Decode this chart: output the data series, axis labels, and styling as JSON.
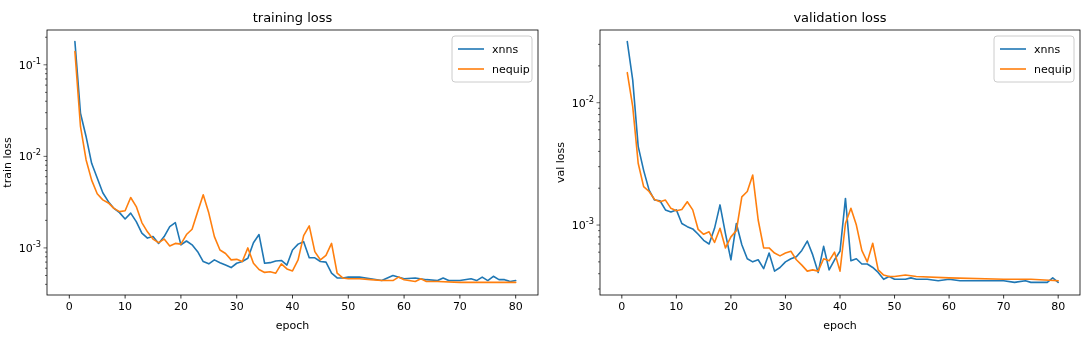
{
  "chart_data": [
    {
      "type": "line",
      "title": "training loss",
      "xlabel": "epoch",
      "ylabel": "train loss",
      "log": "y",
      "legend": "top right",
      "grid": false,
      "xlim": [
        -4,
        84
      ],
      "xticks": [
        0,
        10,
        20,
        30,
        40,
        50,
        60,
        70,
        80
      ],
      "ylim": [
        0.000306,
        0.24
      ],
      "yticks": [
        {
          "value": 0.0004,
          "label": null
        },
        {
          "value": 0.0005,
          "label": null
        },
        {
          "value": 0.0006,
          "label": null
        },
        {
          "value": 0.0007,
          "label": null
        },
        {
          "value": 0.0008,
          "label": null
        },
        {
          "value": 0.0009,
          "label": null
        },
        {
          "value": 0.001,
          "label": "10$^{-3}$"
        },
        {
          "value": 0.002,
          "label": null
        },
        {
          "value": 0.003,
          "label": null
        },
        {
          "value": 0.004,
          "label": null
        },
        {
          "value": 0.005,
          "label": null
        },
        {
          "value": 0.006,
          "label": null
        },
        {
          "value": 0.007,
          "label": null
        },
        {
          "value": 0.008,
          "label": null
        },
        {
          "value": 0.009,
          "label": null
        },
        {
          "value": 0.01,
          "label": "10$^{-2}$"
        },
        {
          "value": 0.02,
          "label": null
        },
        {
          "value": 0.03,
          "label": null
        },
        {
          "value": 0.04,
          "label": null
        },
        {
          "value": 0.05,
          "label": null
        },
        {
          "value": 0.06,
          "label": null
        },
        {
          "value": 0.07,
          "label": null
        },
        {
          "value": 0.08,
          "label": null
        },
        {
          "value": 0.09,
          "label": null
        },
        {
          "value": 0.1,
          "label": "10$^{-1}$"
        },
        {
          "value": 0.2,
          "label": null
        }
      ],
      "series": [
        {
          "name": "xnns",
          "color": "#1f77b4",
          "x": [
            1,
            2,
            3,
            4,
            5,
            6,
            7,
            8,
            9,
            10,
            11,
            12,
            13,
            14,
            15,
            16,
            17,
            18,
            19,
            20,
            21,
            22,
            23,
            24,
            25,
            26,
            27,
            28,
            29,
            30,
            31,
            32,
            33,
            34,
            35,
            36,
            37,
            38,
            39,
            40,
            41,
            42,
            43,
            44,
            45,
            46,
            47,
            48,
            49,
            50,
            52,
            54,
            56,
            58,
            60,
            62,
            64,
            66,
            67,
            68,
            70,
            72,
            73,
            74,
            75,
            76,
            77,
            78,
            79,
            80
          ],
          "values": [
            0.18,
            0.0296,
            0.0165,
            0.0084,
            0.0058,
            0.004,
            0.0032,
            0.0027,
            0.00243,
            0.00207,
            0.0024,
            0.00194,
            0.00145,
            0.00128,
            0.00133,
            0.00112,
            0.00133,
            0.00171,
            0.00189,
            0.00108,
            0.00119,
            0.00108,
            0.00091,
            0.00071,
            0.00067,
            0.00074,
            0.00069,
            0.00065,
            0.00061,
            0.00068,
            0.00071,
            0.00077,
            0.00114,
            0.0014,
            0.00068,
            0.00069,
            0.00072,
            0.00073,
            0.00065,
            0.00095,
            0.0011,
            0.00117,
            0.00078,
            0.00078,
            0.00071,
            0.0007,
            0.00053,
            0.00047,
            0.00047,
            0.00048,
            0.00048,
            0.00046,
            0.00044,
            0.0005,
            0.00046,
            0.00047,
            0.00045,
            0.00044,
            0.00047,
            0.00044,
            0.00044,
            0.00046,
            0.00044,
            0.00048,
            0.00044,
            0.00049,
            0.00045,
            0.00045,
            0.00043,
            0.00044
          ]
        },
        {
          "name": "nequip",
          "color": "#ff7f0e",
          "x": [
            1,
            2,
            3,
            4,
            5,
            6,
            7,
            8,
            9,
            10,
            11,
            12,
            13,
            14,
            15,
            16,
            17,
            18,
            19,
            20,
            21,
            22,
            23,
            24,
            25,
            26,
            27,
            28,
            29,
            30,
            31,
            32,
            33,
            34,
            35,
            36,
            37,
            38,
            39,
            40,
            41,
            42,
            43,
            44,
            45,
            46,
            47,
            48,
            49,
            50,
            52,
            54,
            56,
            58,
            59,
            60,
            62,
            63,
            64,
            66,
            70,
            75,
            76,
            80
          ],
          "values": [
            0.14,
            0.0212,
            0.0092,
            0.0055,
            0.0039,
            0.00335,
            0.0031,
            0.0027,
            0.00249,
            0.00255,
            0.00355,
            0.00283,
            0.00189,
            0.0015,
            0.00125,
            0.00114,
            0.00125,
            0.00105,
            0.00112,
            0.0011,
            0.0014,
            0.0016,
            0.00249,
            0.0038,
            0.0024,
            0.00133,
            0.00095,
            0.00087,
            0.00074,
            0.00075,
            0.00071,
            0.001,
            0.00068,
            0.00058,
            0.00054,
            0.00055,
            0.00053,
            0.00067,
            0.00059,
            0.00056,
            0.00074,
            0.00136,
            0.00174,
            0.00091,
            0.00074,
            0.00083,
            0.00112,
            0.00053,
            0.00047,
            0.00046,
            0.00046,
            0.00045,
            0.00044,
            0.00044,
            0.00048,
            0.00045,
            0.00043,
            0.00046,
            0.00043,
            0.00043,
            0.00042,
            0.00042,
            0.00042,
            0.00042
          ]
        }
      ]
    },
    {
      "type": "line",
      "title": "validation loss",
      "xlabel": "epoch",
      "ylabel": "val loss",
      "log": "y",
      "legend": "top right",
      "grid": false,
      "xlim": [
        -4,
        84
      ],
      "xticks": [
        0,
        10,
        20,
        30,
        40,
        50,
        60,
        70,
        80
      ],
      "ylim": [
        0.000268,
        0.0393
      ],
      "yticks": [
        {
          "value": 0.0003,
          "label": null
        },
        {
          "value": 0.0004,
          "label": null
        },
        {
          "value": 0.0005,
          "label": null
        },
        {
          "value": 0.0006,
          "label": null
        },
        {
          "value": 0.0007,
          "label": null
        },
        {
          "value": 0.0008,
          "label": null
        },
        {
          "value": 0.0009,
          "label": null
        },
        {
          "value": 0.001,
          "label": "10$^{-3}$"
        },
        {
          "value": 0.002,
          "label": null
        },
        {
          "value": 0.003,
          "label": null
        },
        {
          "value": 0.004,
          "label": null
        },
        {
          "value": 0.005,
          "label": null
        },
        {
          "value": 0.006,
          "label": null
        },
        {
          "value": 0.007,
          "label": null
        },
        {
          "value": 0.008,
          "label": null
        },
        {
          "value": 0.009,
          "label": null
        },
        {
          "value": 0.01,
          "label": "10$^{-2}$"
        },
        {
          "value": 0.02,
          "label": null
        },
        {
          "value": 0.03,
          "label": null
        }
      ],
      "series": [
        {
          "name": "xnns",
          "color": "#1f77b4",
          "x": [
            1,
            2,
            3,
            4,
            5,
            6,
            7,
            8,
            9,
            10,
            11,
            12,
            13,
            14,
            15,
            16,
            17,
            18,
            19,
            20,
            21,
            22,
            23,
            24,
            25,
            26,
            27,
            28,
            29,
            30,
            31,
            32,
            33,
            34,
            35,
            36,
            37,
            38,
            39,
            40,
            41,
            42,
            43,
            44,
            45,
            46,
            47,
            48,
            49,
            50,
            52,
            53,
            54,
            56,
            58,
            60,
            62,
            64,
            66,
            68,
            70,
            72,
            74,
            75,
            76,
            77,
            78,
            79,
            80
          ],
          "values": [
            0.0316,
            0.0153,
            0.0044,
            0.0028,
            0.00193,
            0.0016,
            0.00158,
            0.00133,
            0.00128,
            0.00133,
            0.00103,
            0.00097,
            0.00093,
            0.00084,
            0.00075,
            0.0007,
            0.00094,
            0.00146,
            0.00085,
            0.00052,
            0.00103,
            0.00069,
            0.00053,
            0.0005,
            0.00052,
            0.00044,
            0.00059,
            0.00042,
            0.00045,
            0.0005,
            0.00053,
            0.00055,
            0.00062,
            0.00074,
            0.00057,
            0.00041,
            0.00067,
            0.00043,
            0.00052,
            0.00061,
            0.00165,
            0.00051,
            0.00053,
            0.00048,
            0.00048,
            0.00045,
            0.00041,
            0.00036,
            0.00038,
            0.00036,
            0.00036,
            0.00037,
            0.00036,
            0.00036,
            0.00035,
            0.00036,
            0.00035,
            0.00035,
            0.00035,
            0.00035,
            0.00035,
            0.00034,
            0.00035,
            0.00034,
            0.00034,
            0.00034,
            0.00034,
            0.00037,
            0.00034
          ]
        },
        {
          "name": "nequip",
          "color": "#ff7f0e",
          "x": [
            1,
            2,
            3,
            4,
            5,
            6,
            7,
            8,
            9,
            10,
            11,
            12,
            13,
            14,
            15,
            16,
            17,
            18,
            19,
            20,
            21,
            22,
            23,
            24,
            25,
            26,
            27,
            28,
            29,
            30,
            31,
            32,
            33,
            34,
            35,
            36,
            37,
            38,
            39,
            40,
            41,
            42,
            43,
            44,
            45,
            46,
            47,
            48,
            49,
            50,
            52,
            54,
            60,
            70,
            75,
            80
          ],
          "values": [
            0.0176,
            0.0093,
            0.0032,
            0.00206,
            0.00188,
            0.00162,
            0.00155,
            0.0016,
            0.00137,
            0.00131,
            0.00134,
            0.00155,
            0.00133,
            0.00092,
            0.00084,
            0.00088,
            0.00072,
            0.00094,
            0.00065,
            0.0008,
            0.0009,
            0.0017,
            0.00188,
            0.00256,
            0.0011,
            0.00065,
            0.00065,
            0.00059,
            0.00056,
            0.00059,
            0.00061,
            0.00052,
            0.00047,
            0.00042,
            0.00043,
            0.00042,
            0.00053,
            0.00051,
            0.0006,
            0.00042,
            0.00103,
            0.00137,
            0.001,
            0.00062,
            0.0005,
            0.00071,
            0.00043,
            0.00039,
            0.00038,
            0.00038,
            0.00039,
            0.00038,
            0.00037,
            0.00036,
            0.00036,
            0.00035
          ]
        }
      ]
    }
  ]
}
